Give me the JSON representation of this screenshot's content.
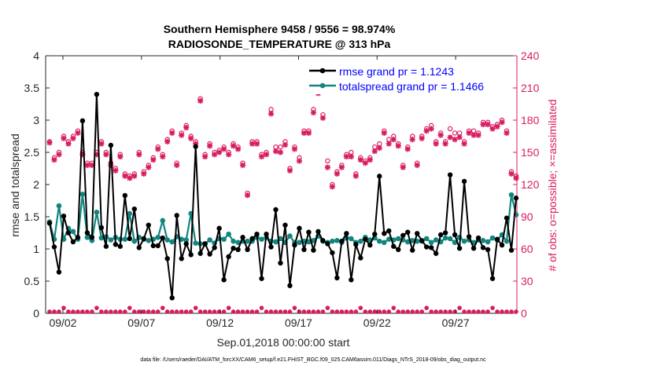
{
  "chart_data": {
    "type": "line",
    "title_line1": "Southern Hemisphere 9458 / 9556 = 98.974%",
    "title_line2": "RADIOSONDE_TEMPERATURE @ 313 hPa",
    "xlabel": "Sep.01,2018 00:00:00 start",
    "ylabel_left": "rmse and totalspread",
    "ylabel_right": "# of obs: o=possible; ×=assimilated",
    "footnote": "data file: /Users/raeder/DAI/ATM_forcXX/CAM6_setup/f.e21.FHIST_BGC.f09_025.CAM6assim.011/Diags_NTrS_2018-09/obs_diag_output.nc",
    "ylim_left": [
      0,
      4
    ],
    "ylim_right": [
      0,
      240
    ],
    "xlim": [
      1,
      31
    ],
    "yticks_left": [
      "0",
      "0.5",
      "1",
      "1.5",
      "2",
      "2.5",
      "3",
      "3.5",
      "4"
    ],
    "yticks_right": [
      "0",
      "30",
      "60",
      "90",
      "120",
      "150",
      "180",
      "210",
      "240"
    ],
    "xticks": [
      {
        "t": 2.1,
        "label": "09/02"
      },
      {
        "t": 7.1,
        "label": "09/07"
      },
      {
        "t": 12.1,
        "label": "09/12"
      },
      {
        "t": 17.1,
        "label": "09/17"
      },
      {
        "t": 22.1,
        "label": "09/22"
      },
      {
        "t": 27.1,
        "label": "09/27"
      }
    ],
    "legend": {
      "rmse": "rmse grand pr = 1.1243",
      "spread": "totalspread grand pr = 1.1466"
    },
    "colors": {
      "rmse": "#000000",
      "spread": "#12857f",
      "obs": "#d81b60",
      "text_blue": "#0000ff",
      "axis": "#262626"
    },
    "series": [
      {
        "name": "rmse",
        "values": [
          1.4,
          1.03,
          0.64,
          1.51,
          1.25,
          1.11,
          1.18,
          2.99,
          1.25,
          1.18,
          3.4,
          1.33,
          1.04,
          2.61,
          1.07,
          1.04,
          1.83,
          1.16,
          1.62,
          1.02,
          1.16,
          1.37,
          1.05,
          1.05,
          1.17,
          0.85,
          0.24,
          1.52,
          0.85,
          1.08,
          0.91,
          2.59,
          0.93,
          1.08,
          0.92,
          1.02,
          1.32,
          0.52,
          0.88,
          1.01,
          0.99,
          1.18,
          0.99,
          1.16,
          1.23,
          0.54,
          1.23,
          1.03,
          1.61,
          0.78,
          1.37,
          0.43,
          1.06,
          1.32,
          0.99,
          1.26,
          0.98,
          1.27,
          1.13,
          1.08,
          0.94,
          0.55,
          1.12,
          1.24,
          0.52,
          1.07,
          0.86,
          1.15,
          1.06,
          1.23,
          2.13,
          1.24,
          1.28,
          1.04,
          0.99,
          1.21,
          1.26,
          0.98,
          1.24,
          1.13,
          1.03,
          1.02,
          0.93,
          1.22,
          1.25,
          2.15,
          1.22,
          1.01,
          2.05,
          1.19,
          1.01,
          1.17,
          1.02,
          0.99,
          0.54,
          1.15,
          1.06,
          1.48,
          0.98,
          1.79
        ]
      },
      {
        "name": "totalspread",
        "values": [
          1.42,
          1.15,
          1.67,
          1.15,
          1.32,
          1.27,
          1.15,
          1.85,
          1.18,
          1.13,
          1.57,
          1.17,
          1.19,
          1.14,
          1.18,
          1.15,
          1.15,
          1.55,
          1.12,
          1.18,
          1.15,
          1.13,
          1.15,
          1.18,
          1.44,
          1.14,
          1.11,
          1.19,
          1.15,
          1.14,
          1.55,
          1.09,
          1.08,
          1.08,
          1.14,
          1.09,
          1.16,
          1.15,
          1.23,
          1.12,
          1.1,
          1.12,
          1.12,
          1.12,
          1.18,
          1.15,
          1.18,
          1.12,
          1.11,
          1.16,
          1.1,
          1.2,
          1.1,
          1.1,
          1.12,
          1.11,
          1.13,
          1.2,
          1.12,
          1.1,
          1.12,
          1.13,
          1.1,
          1.17,
          1.16,
          1.1,
          1.12,
          1.18,
          1.14,
          1.17,
          1.12,
          1.1,
          1.15,
          1.14,
          1.16,
          1.14,
          1.11,
          1.13,
          1.12,
          1.12,
          1.16,
          1.1,
          1.14,
          1.11,
          1.17,
          1.16,
          1.1,
          1.18,
          1.12,
          1.14,
          1.1,
          1.14,
          1.13,
          1.11,
          1.17,
          1.14,
          1.22,
          1.12,
          1.84,
          1.53
        ]
      },
      {
        "name": "obs_possible",
        "values": [
          160,
          145,
          150,
          165,
          160,
          165,
          170,
          150,
          140,
          140,
          150,
          160,
          150,
          140,
          135,
          148,
          130,
          128,
          130,
          150,
          132,
          138,
          145,
          155,
          148,
          162,
          170,
          140,
          168,
          175,
          165,
          160,
          200,
          148,
          158,
          150,
          152,
          155,
          150,
          158,
          155,
          140,
          112,
          160,
          160,
          148,
          150,
          190,
          155,
          155,
          160,
          135,
          155,
          145,
          170,
          170,
          190,
          208,
          185,
          142,
          120,
          132,
          138,
          148,
          150,
          130,
          145,
          142,
          145,
          155,
          158,
          170,
          162,
          165,
          158,
          138,
          155,
          165,
          140,
          165,
          172,
          175,
          160,
          168,
          160,
          172,
          168,
          168,
          160,
          170,
          170,
          168,
          178,
          178,
          174,
          176,
          180,
          170,
          132,
          128
        ]
      },
      {
        "name": "obs_assimilated",
        "values": [
          159,
          143,
          148,
          163,
          158,
          163,
          168,
          148,
          138,
          138,
          148,
          158,
          148,
          138,
          133,
          146,
          128,
          126,
          128,
          148,
          130,
          136,
          143,
          153,
          146,
          160,
          168,
          138,
          166,
          173,
          163,
          158,
          198,
          146,
          156,
          148,
          150,
          153,
          148,
          156,
          153,
          138,
          110,
          158,
          158,
          146,
          148,
          186,
          151,
          150,
          157,
          133,
          153,
          142,
          168,
          168,
          187,
          205,
          182,
          136,
          118,
          130,
          136,
          146,
          146,
          128,
          143,
          140,
          143,
          151,
          154,
          168,
          158,
          162,
          156,
          136,
          153,
          162,
          138,
          163,
          170,
          172,
          158,
          166,
          158,
          164,
          162,
          164,
          158,
          168,
          166,
          166,
          176,
          176,
          172,
          174,
          178,
          168,
          130,
          126
        ]
      }
    ]
  }
}
